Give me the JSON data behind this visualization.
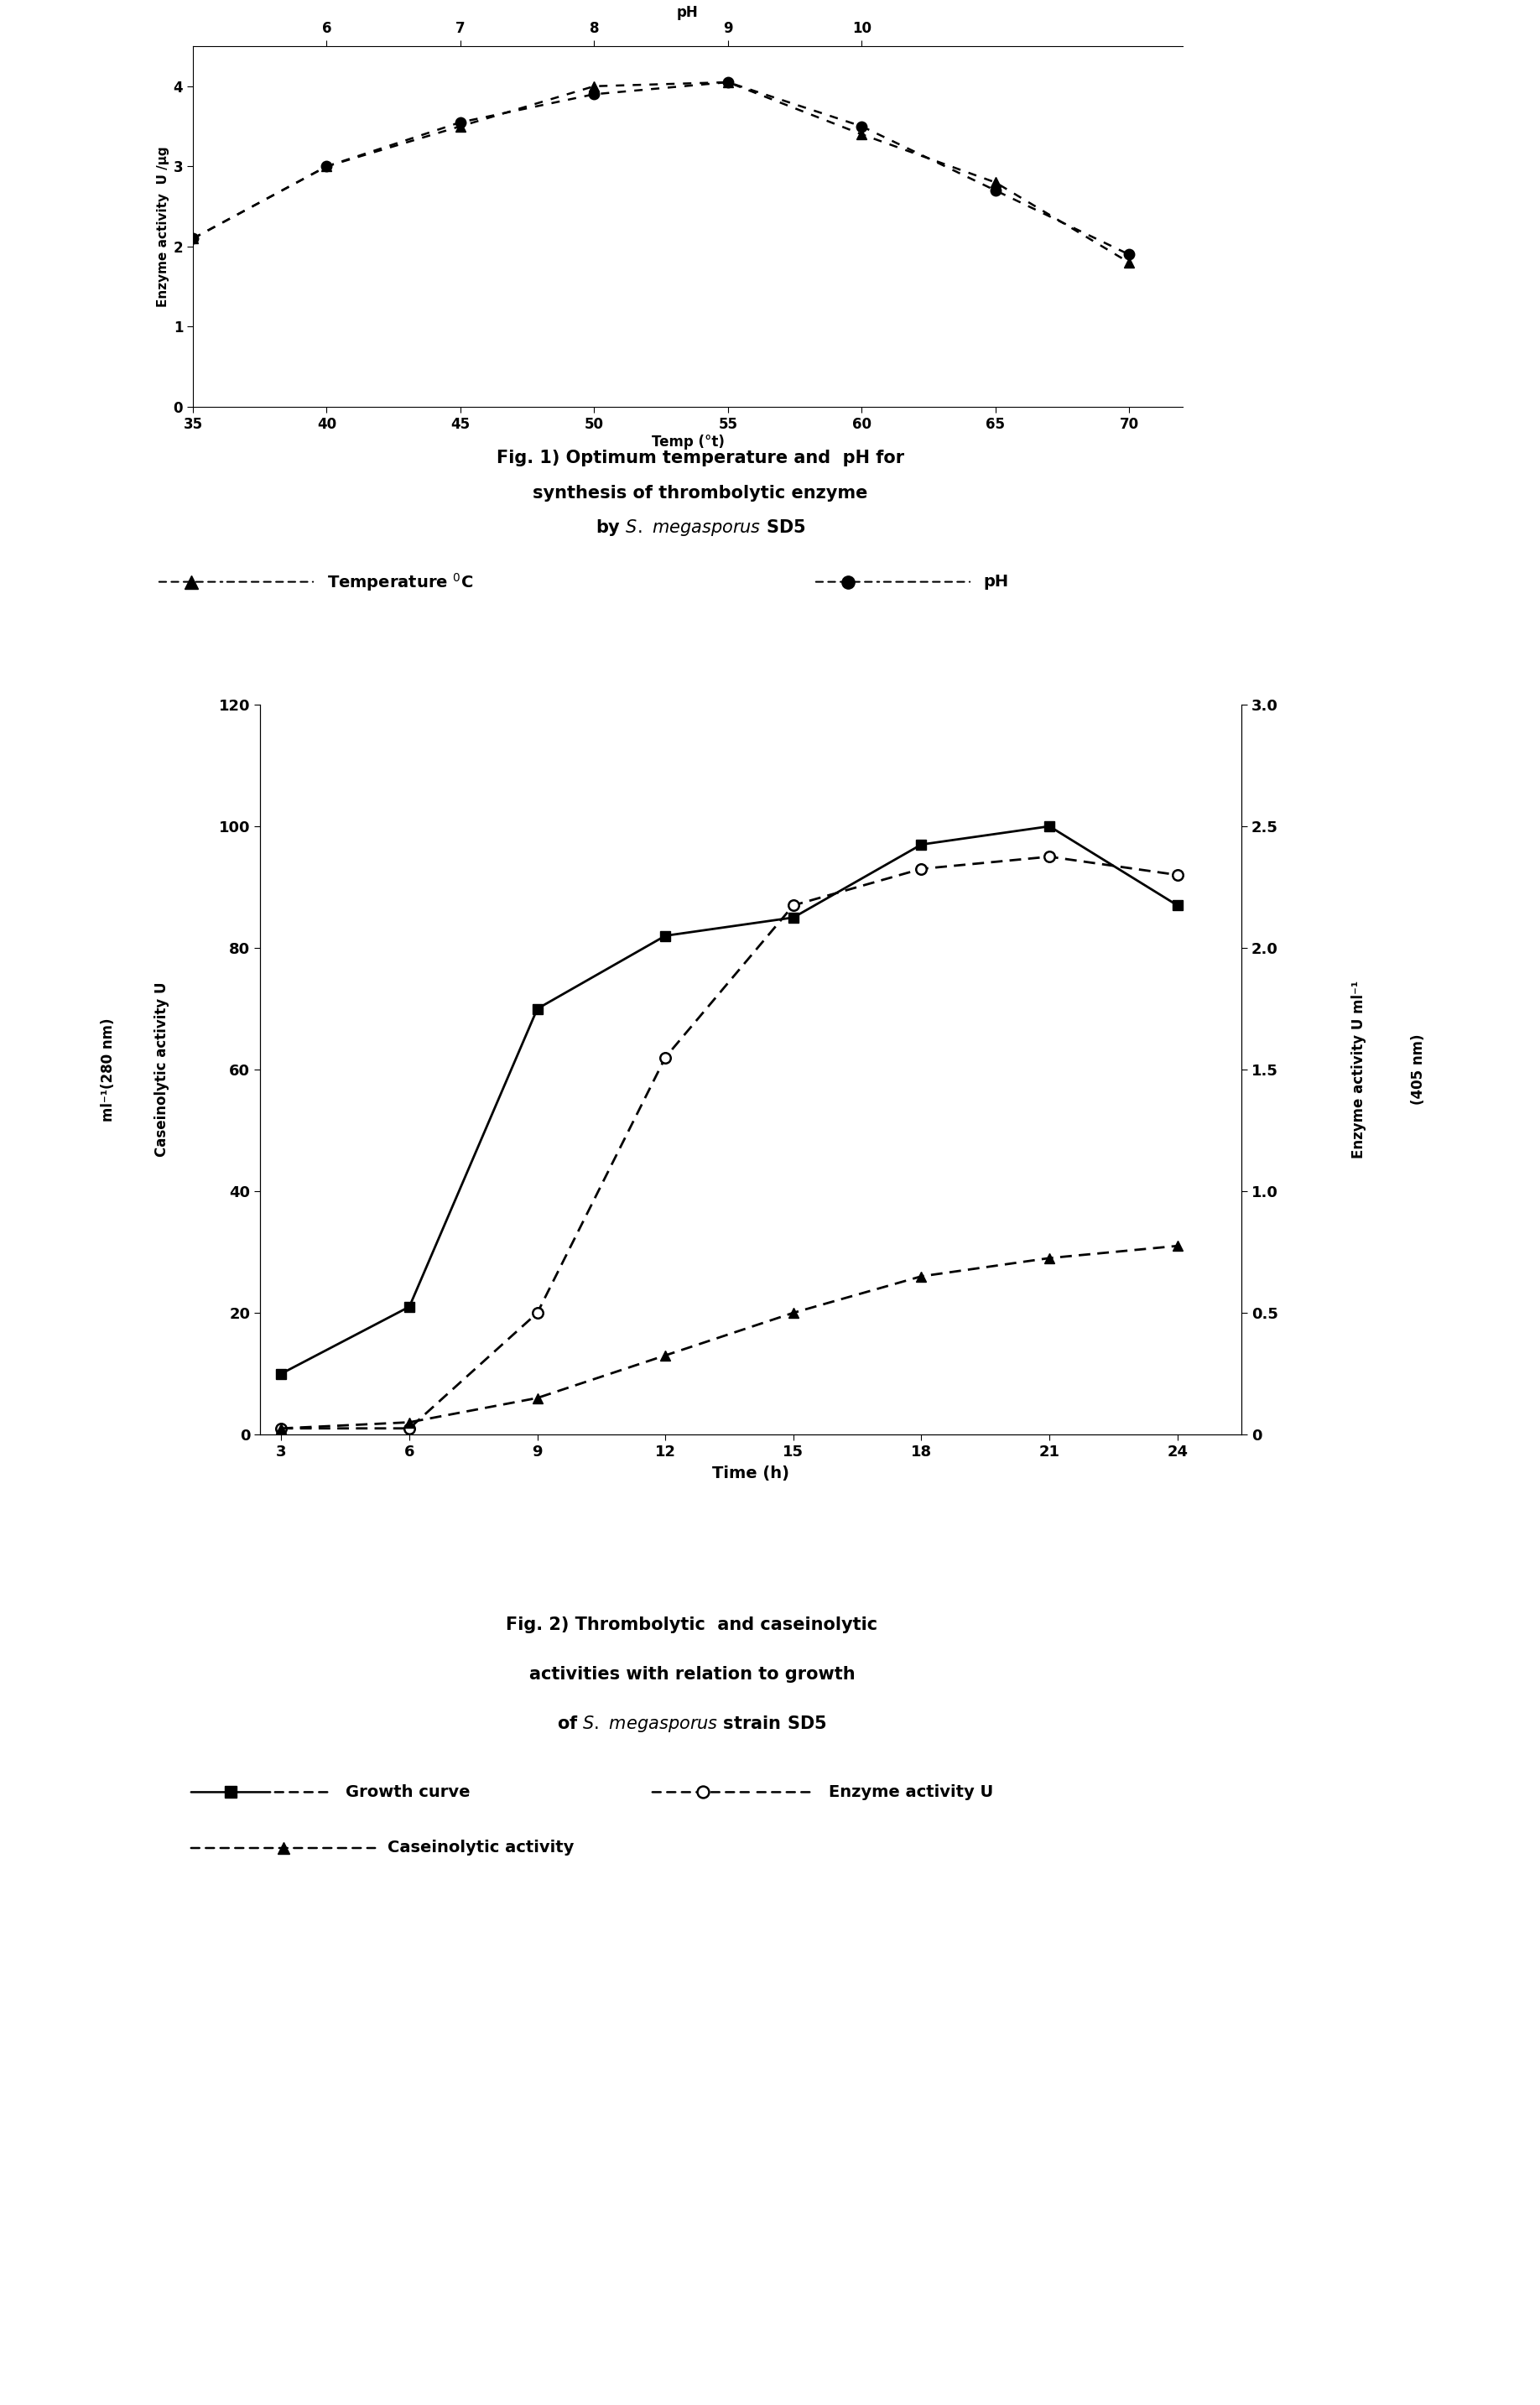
{
  "fig1": {
    "temp_x": [
      35,
      40,
      45,
      50,
      55,
      60,
      65,
      70
    ],
    "temp_y": [
      2.1,
      3.0,
      3.5,
      4.0,
      4.05,
      3.4,
      2.8,
      1.8
    ],
    "ph_x": [
      35,
      40,
      45,
      50,
      55,
      60,
      65,
      70
    ],
    "ph_y": [
      2.1,
      3.0,
      3.55,
      3.9,
      4.05,
      3.5,
      2.7,
      1.9
    ],
    "ph_axis_labels": [
      6,
      7,
      8,
      9,
      10
    ],
    "ph_axis_x": [
      40,
      45,
      50,
      55,
      60
    ],
    "temp_axis_labels": [
      35,
      40,
      45,
      50,
      55,
      60,
      65,
      70
    ],
    "ylabel": "Enzyme activity  U /µg",
    "xlabel_temp": "Temp (°t)",
    "xlabel_ph": "pH",
    "ylim": [
      0,
      4.5
    ],
    "yticks": [
      0,
      1,
      2,
      3,
      4
    ],
    "cap_title1": "Fig. 1) Optimum temperature and  pH for",
    "cap_title2": "synthesis of thrombolytic enzyme",
    "cap_title3": "by ",
    "cap_title3b": "megasporus",
    "cap_title3c": " SD5",
    "legend_temp": "Temperature ",
    "legend_ph": "pH"
  },
  "fig2": {
    "time_x": [
      3,
      6,
      9,
      12,
      15,
      18,
      21,
      24
    ],
    "growth_y": [
      10,
      21,
      70,
      82,
      85,
      97,
      100,
      87
    ],
    "enzyme_y": [
      1,
      1,
      20,
      62,
      87,
      93,
      95,
      92
    ],
    "casein_y": [
      1,
      2,
      6,
      13,
      20,
      26,
      29,
      31
    ],
    "ylabel_left1": "Caseinolytic activity U",
    "ylabel_left2": "ml⁻¹(280 nm)",
    "ylabel_right1": "Enzyme activity U ml⁻¹",
    "ylabel_right2": "(405 nm)",
    "xlabel": "Time (h)",
    "ylim_left": [
      0,
      120
    ],
    "ylim_right": [
      0,
      3
    ],
    "yticks_left": [
      0,
      20,
      40,
      60,
      80,
      100,
      120
    ],
    "yticks_right": [
      0,
      0.5,
      1.0,
      1.5,
      2.0,
      2.5,
      3.0
    ],
    "xticks": [
      3,
      6,
      9,
      12,
      15,
      18,
      21,
      24
    ],
    "cap_title1": "Fig. 2) Thrombolytic  and caseinolytic",
    "cap_title2": "activities with relation to growth",
    "cap_title3": "of ",
    "cap_title3b": "megasporus",
    "cap_title3c": " strain SD5",
    "legend_growth": "Growth curve",
    "legend_enzyme": "Enzyme activity U",
    "legend_casein": "Caseinolytic activity"
  },
  "bg_color": "#ffffff",
  "line_color": "#000000"
}
